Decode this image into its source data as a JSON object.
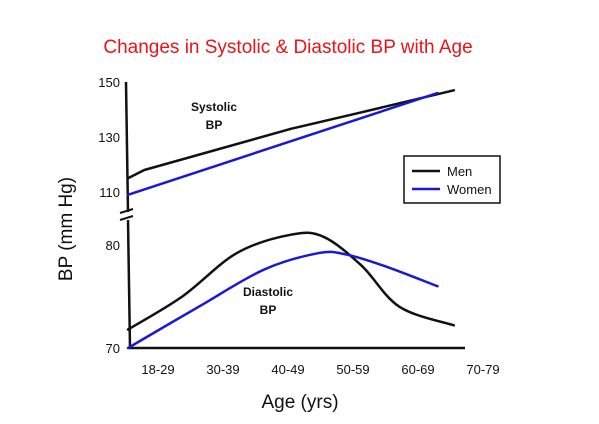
{
  "chart_data": {
    "type": "line",
    "title": "Changes in Systolic & Diastolic BP with Age",
    "xlabel": "Age (yrs)",
    "ylabel": "BP (mm Hg)",
    "categories": [
      "18-29",
      "30-39",
      "40-49",
      "50-59",
      "60-69",
      "70-79"
    ],
    "yticks_upper": [
      110,
      130,
      150
    ],
    "yticks_lower": [
      70,
      80
    ],
    "axis_break": true,
    "grid": false,
    "legend_position": "right",
    "legend": [
      {
        "name": "Men",
        "color": "#111111"
      },
      {
        "name": "Women",
        "color": "#1a17d8"
      }
    ],
    "annotations": {
      "systolic_line1": "Systolic",
      "systolic_line2": "BP",
      "diastolic_line1": "Diastolic",
      "diastolic_line2": "BP"
    },
    "series": [
      {
        "name": "Men",
        "group": "systolic",
        "color": "#111111",
        "x": [
          0,
          0.3,
          3,
          4.3,
          6
        ],
        "values": [
          115,
          118,
          133,
          139,
          147
        ]
      },
      {
        "name": "Women",
        "group": "systolic",
        "color": "#1a17d8",
        "x": [
          0,
          5.7
        ],
        "values": [
          109,
          146
        ]
      },
      {
        "name": "Men",
        "group": "diastolic",
        "color": "#111111",
        "x": [
          0,
          1,
          2,
          3,
          3.6,
          4.3,
          5,
          6
        ],
        "values": [
          71.8,
          75,
          79.2,
          81,
          80.8,
          78,
          74,
          72.2
        ]
      },
      {
        "name": "Women",
        "group": "diastolic",
        "color": "#1a17d8",
        "x": [
          0,
          1.3,
          2.5,
          3.5,
          4,
          4.7,
          5.7
        ],
        "values": [
          70,
          74,
          77.6,
          79.2,
          79.1,
          78,
          76
        ]
      }
    ]
  }
}
